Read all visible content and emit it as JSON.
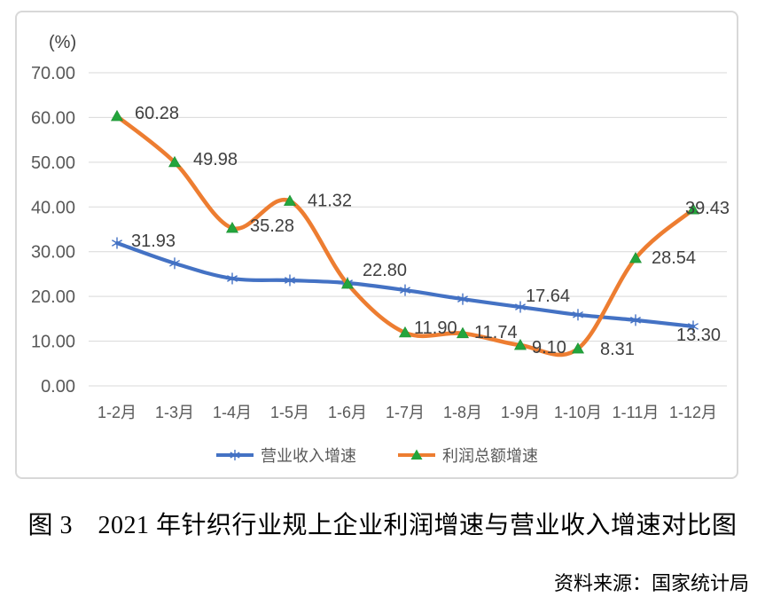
{
  "chart_data": {
    "type": "line",
    "unit_label": "(%)",
    "categories": [
      "1-2月",
      "1-3月",
      "1-4月",
      "1-5月",
      "1-6月",
      "1-7月",
      "1-8月",
      "1-9月",
      "1-10月",
      "1-11月",
      "1-12月"
    ],
    "series": [
      {
        "name": "营业收入增速",
        "color": "#4472C4",
        "marker": "asterisk",
        "marker_color": "#4472C4",
        "values": [
          31.93,
          27.4,
          24.0,
          23.6,
          23.0,
          21.4,
          19.4,
          17.64,
          15.9,
          14.7,
          13.3
        ],
        "data_labels": {
          "0": "31.93",
          "7": "17.64",
          "10": "13.30"
        }
      },
      {
        "name": "利润总额增速",
        "color": "#ED7D31",
        "marker": "triangle",
        "marker_color": "#23A53C",
        "values": [
          60.28,
          49.98,
          35.28,
          41.32,
          22.8,
          11.9,
          11.74,
          9.1,
          8.31,
          28.54,
          39.43
        ],
        "data_labels": {
          "0": "60.28",
          "1": "49.98",
          "2": "35.28",
          "3": "41.32",
          "4": "22.80",
          "5": "11.90",
          "6": "11.74",
          "7": "9.10",
          "8": "8.31",
          "9": "28.54",
          "10": "39.43"
        }
      }
    ],
    "ylim": [
      0,
      70
    ],
    "ytick_step": 10,
    "yticks": [
      "0.00",
      "10.00",
      "20.00",
      "30.00",
      "40.00",
      "50.00",
      "60.00",
      "70.00"
    ],
    "grid": true,
    "legend_position": "bottom",
    "colors": {
      "gridline": "#D9D9D9",
      "tick_text": "#595959",
      "data_label_text": "#3F3F3F",
      "frame_border": "#D8D8D8"
    }
  },
  "caption": "图 3　2021 年针织行业规上企业利润增速与营业收入增速对比图",
  "source": "资料来源：国家统计局"
}
